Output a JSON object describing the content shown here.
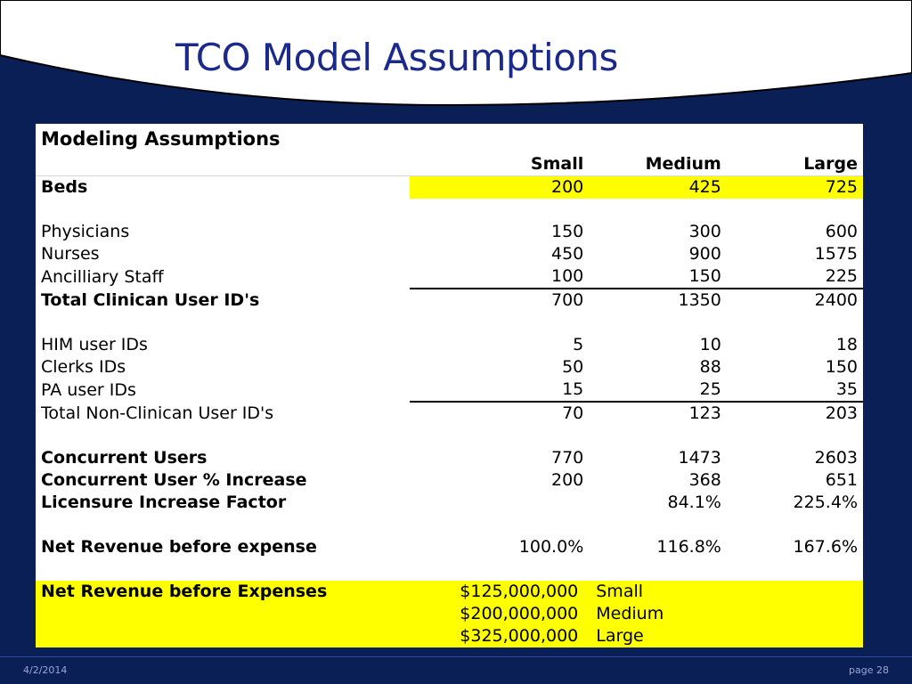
{
  "slide": {
    "title": "TCO Model Assumptions",
    "footer_date": "4/2/2014",
    "footer_page": "page 28"
  },
  "table": {
    "title": "Modeling Assumptions",
    "headers": [
      "",
      "Small",
      "Medium",
      "Large"
    ],
    "rows": [
      {
        "label": "Beds",
        "small": "200",
        "medium": "425",
        "large": "725"
      },
      {
        "label": "Physicians",
        "small": "150",
        "medium": "300",
        "large": "600"
      },
      {
        "label": "Nurses",
        "small": "450",
        "medium": "900",
        "large": "1575"
      },
      {
        "label": "Ancilliary Staff",
        "small": "100",
        "medium": "150",
        "large": "225"
      },
      {
        "label": "Total Clinican User ID's",
        "small": "700",
        "medium": "1350",
        "large": "2400"
      },
      {
        "label": "HIM user IDs",
        "small": "5",
        "medium": "10",
        "large": "18"
      },
      {
        "label": "Clerks IDs",
        "small": "50",
        "medium": "88",
        "large": "150"
      },
      {
        "label": "PA user IDs",
        "small": "15",
        "medium": "25",
        "large": "35"
      },
      {
        "label": "Total Non-Clinican User ID's",
        "small": "70",
        "medium": "123",
        "large": "203"
      },
      {
        "label": "Concurrent Users",
        "small": "770",
        "medium": "1473",
        "large": "2603"
      },
      {
        "label": "Concurrent User % Increase",
        "small": "200",
        "medium": "368",
        "large": "651"
      },
      {
        "label": "Licensure Increase Factor",
        "small": "",
        "medium": "84.1%",
        "large": "225.4%"
      },
      {
        "label": "Net Revenue before expense",
        "small": "100.0%",
        "medium": "116.8%",
        "large": "167.6%"
      }
    ],
    "revenue": {
      "label": "Net Revenue before Expenses",
      "items": [
        {
          "amount": "$125,000,000",
          "size": "Small"
        },
        {
          "amount": "$200,000,000",
          "size": "Medium"
        },
        {
          "amount": "$325,000,000",
          "size": "Large"
        }
      ]
    }
  }
}
